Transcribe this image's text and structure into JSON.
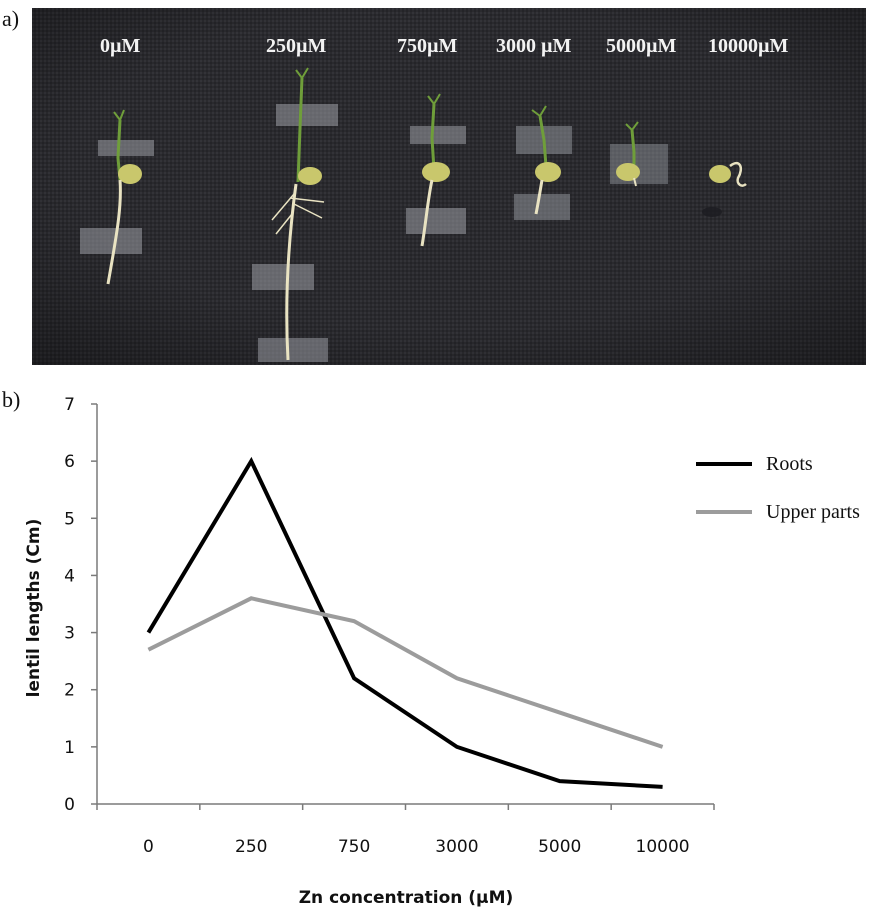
{
  "figure": {
    "panel_a_label": "a)",
    "panel_b_label": "b)"
  },
  "photo": {
    "concentration_labels": [
      "0µM",
      "250µM",
      "750µM",
      "3000 µM",
      "5000µM",
      "10000µM"
    ],
    "background_color": "#2a2a2e",
    "seed_color": "#c9c76c",
    "shoot_color": "#6f9e3a",
    "root_color": "#e9e3c2",
    "tape_color": "#9a9da4"
  },
  "chart_data": {
    "type": "line",
    "categories": [
      "0",
      "250",
      "750",
      "3000",
      "5000",
      "10000"
    ],
    "series": [
      {
        "name": "Roots",
        "values": [
          3.0,
          6.0,
          2.2,
          1.0,
          0.4,
          0.3
        ],
        "color": "#000000"
      },
      {
        "name": "Upper parts",
        "values": [
          2.7,
          3.6,
          3.2,
          2.2,
          1.6,
          1.0
        ],
        "color": "#9c9c9c"
      }
    ],
    "xlabel": "Zn concentration  (µM)",
    "ylabel": "lentil lengths (Cm)",
    "ylim": [
      0,
      7
    ],
    "yticks": [
      0,
      1,
      2,
      3,
      4,
      5,
      6,
      7
    ],
    "grid": false,
    "legend_position": "right"
  }
}
